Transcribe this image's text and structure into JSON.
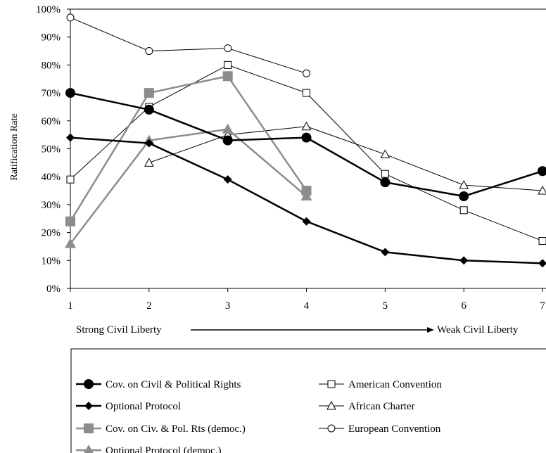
{
  "chart_data": {
    "type": "line",
    "xlabel": "",
    "ylabel": "Ratification Rate",
    "x": [
      1,
      2,
      3,
      4,
      5,
      6,
      7
    ],
    "x_tick_labels": [
      "1",
      "2",
      "3",
      "4",
      "5",
      "6",
      "7"
    ],
    "ylim": [
      0,
      100
    ],
    "y_tick_labels": [
      "0%",
      "10%",
      "20%",
      "30%",
      "40%",
      "50%",
      "60%",
      "70%",
      "80%",
      "90%",
      "100%"
    ],
    "grid": false,
    "legend_position": "bottom",
    "axis_annotation": {
      "left": "Strong Civil Liberty",
      "right": "Weak Civil Liberty"
    },
    "series": [
      {
        "name": "Cov. on Civil & Political Rights",
        "x": [
          1,
          2,
          3,
          4,
          5,
          6,
          7
        ],
        "values": [
          70,
          64,
          53,
          54,
          38,
          33,
          42
        ],
        "color": "#000000",
        "marker": "circle-filled",
        "line_width": "thick"
      },
      {
        "name": "Optional Protocol",
        "x": [
          1,
          2,
          3,
          4,
          5,
          6,
          7
        ],
        "values": [
          54,
          52,
          39,
          24,
          13,
          10,
          9
        ],
        "color": "#000000",
        "marker": "diamond-filled",
        "line_width": "thick"
      },
      {
        "name": "Cov. on Civ. & Pol. Rts (democ.)",
        "x": [
          1,
          2,
          3,
          4
        ],
        "values": [
          24,
          70,
          76,
          35
        ],
        "color": "#8c8c8c",
        "marker": "square-filled",
        "line_width": "thick"
      },
      {
        "name": "Optional Protocol (democ.)",
        "x": [
          1,
          2,
          3,
          4
        ],
        "values": [
          16,
          53,
          57,
          33
        ],
        "color": "#8c8c8c",
        "marker": "triangle-filled",
        "line_width": "thick"
      },
      {
        "name": "American Convention",
        "x": [
          1,
          2,
          3,
          4,
          5,
          6,
          7
        ],
        "values": [
          39,
          65,
          80,
          70,
          41,
          28,
          17
        ],
        "color": "#000000",
        "marker": "square-open",
        "line_width": "thin"
      },
      {
        "name": "African Charter",
        "x": [
          2,
          3,
          4,
          5,
          6,
          7
        ],
        "values": [
          45,
          55,
          58,
          48,
          37,
          35
        ],
        "color": "#000000",
        "marker": "triangle-open",
        "line_width": "thin"
      },
      {
        "name": "European Convention",
        "x": [
          1,
          2,
          3,
          4
        ],
        "values": [
          97,
          85,
          86,
          77
        ],
        "color": "#000000",
        "marker": "circle-open",
        "line_width": "thin"
      }
    ],
    "legend_order": [
      0,
      4,
      1,
      5,
      2,
      6,
      3
    ]
  }
}
